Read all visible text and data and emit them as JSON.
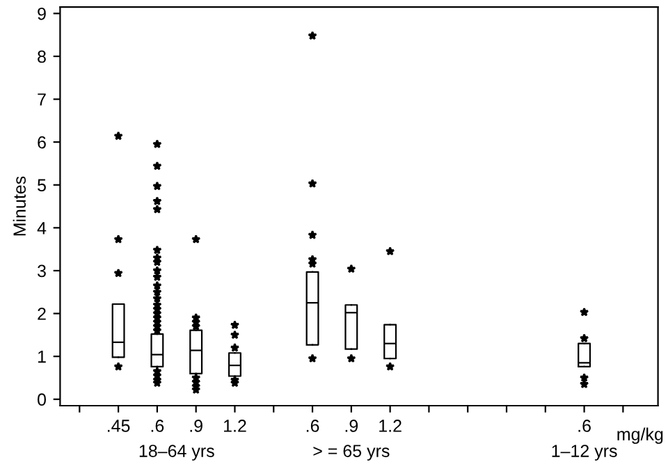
{
  "chart_data": {
    "type": "box",
    "categories": [
      null,
      ".45",
      ".6",
      ".9",
      "1.2",
      null,
      ".6",
      ".9",
      "1.2",
      null,
      null,
      null,
      null,
      ".6",
      null
    ],
    "xlabel": "mg/kg",
    "ylabel": "Minutes",
    "ylim": [
      -0.15,
      9.15
    ],
    "yticks": [
      0,
      1,
      2,
      3,
      4,
      5,
      6,
      7,
      8,
      9
    ],
    "marker": "star",
    "grid": false,
    "color": "#000000",
    "boxes": [
      null,
      {
        "low": 0.98,
        "q1": 0.98,
        "median": 1.33,
        "q3": 2.22,
        "high": 2.22,
        "outliers": [
          6.14,
          3.73,
          2.94,
          0.76
        ]
      },
      {
        "low": 0.76,
        "q1": 0.76,
        "median": 1.04,
        "q3": 1.52,
        "high": 1.52,
        "outliers": [
          5.95,
          5.44,
          4.97,
          4.62,
          4.43,
          3.48,
          3.3,
          3.2,
          3.0,
          2.85,
          2.65,
          2.5,
          2.35,
          2.2,
          2.1,
          2.0,
          1.9,
          1.8,
          1.7,
          1.6,
          0.65,
          0.55,
          0.45,
          0.38
        ]
      },
      {
        "low": 0.6,
        "q1": 0.6,
        "median": 1.14,
        "q3": 1.61,
        "high": 1.61,
        "outliers": [
          3.73,
          1.9,
          1.8,
          1.7,
          0.5,
          0.4,
          0.3,
          0.22
        ]
      },
      {
        "low": 0.54,
        "q1": 0.54,
        "median": 0.79,
        "q3": 1.08,
        "high": 1.08,
        "outliers": [
          1.73,
          1.5,
          1.2,
          0.45,
          0.38
        ]
      },
      null,
      {
        "low": 1.27,
        "q1": 1.27,
        "median": 2.25,
        "q3": 2.97,
        "high": 2.97,
        "outliers": [
          8.48,
          5.03,
          3.83,
          3.26,
          3.16,
          0.95
        ]
      },
      {
        "low": 1.17,
        "q1": 1.17,
        "median": 2.02,
        "q3": 2.2,
        "high": 2.2,
        "outliers": [
          3.04,
          0.95
        ]
      },
      {
        "low": 0.95,
        "q1": 0.95,
        "median": 1.3,
        "q3": 1.74,
        "high": 1.74,
        "outliers": [
          3.45,
          0.76
        ]
      },
      null,
      null,
      null,
      null,
      {
        "low": 0.76,
        "q1": 0.76,
        "median": 0.85,
        "q3": 1.3,
        "high": 1.3,
        "outliers": [
          2.03,
          1.42,
          0.5,
          0.35
        ]
      },
      null
    ],
    "annotations": [
      "18–64 yrs",
      "> = 65 yrs",
      "1–12 yrs"
    ]
  }
}
